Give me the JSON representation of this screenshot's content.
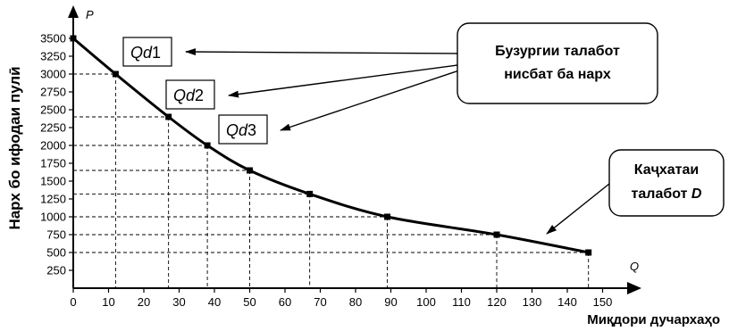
{
  "chart_data": {
    "type": "line",
    "xlabel": "Миқдори дучархаҳо",
    "ylabel": "Нарх бо ифодаи пулӣ",
    "x_axis_letter": "Q",
    "y_axis_letter": "P",
    "xlim": [
      0,
      160
    ],
    "ylim": [
      0,
      3600
    ],
    "xticks": [
      "0",
      "10",
      "20",
      "30",
      "40",
      "50",
      "60",
      "70",
      "80",
      "90",
      "100",
      "110",
      "120",
      "130",
      "140",
      "150"
    ],
    "yticks": [
      "250",
      "500",
      "750",
      "1000",
      "1250",
      "1500",
      "1750",
      "2000",
      "2250",
      "2500",
      "2750",
      "3000",
      "3250",
      "3500"
    ],
    "series": [
      {
        "x": [
          0,
          12,
          27,
          38,
          50,
          67,
          89,
          120,
          146
        ],
        "y": [
          3500,
          3000,
          2400,
          2000,
          1650,
          1320,
          1000,
          750,
          500
        ]
      }
    ],
    "labels": [
      {
        "text": "Qd",
        "suffix": "1"
      },
      {
        "text": "Qd",
        "suffix": "2"
      },
      {
        "text": "Qd",
        "suffix": "3"
      }
    ],
    "callouts": [
      {
        "lines": [
          "Бузургии талабот",
          "нисбат ба нарх"
        ]
      },
      {
        "lines": [
          "Каҷхатаи",
          "талабот",
          "D"
        ]
      }
    ],
    "grid": false
  }
}
